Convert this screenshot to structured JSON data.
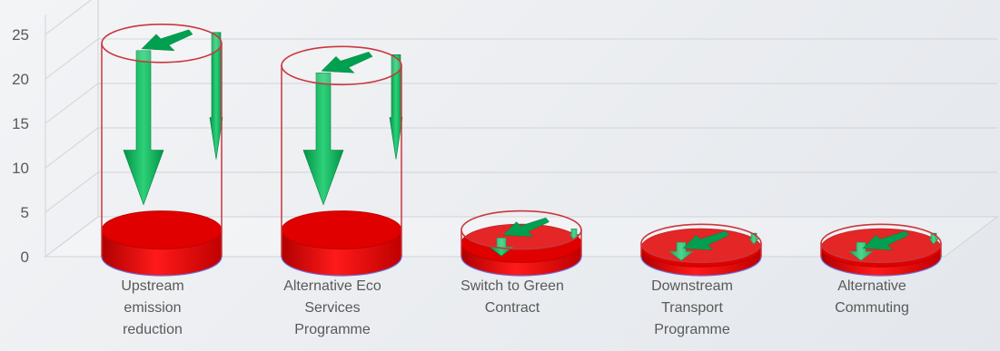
{
  "chart_data": {
    "type": "bar",
    "style": "3d-cylinder",
    "title": "",
    "xlabel": "",
    "ylabel": "",
    "ylim": [
      0,
      25
    ],
    "yticks": [
      0,
      5,
      10,
      15,
      20,
      25
    ],
    "grid": true,
    "legend": "none",
    "categories": [
      "Upstream emission reduction",
      "Alternative Eco Services Programme",
      "Switch to Green Contract",
      "Downstream Transport Programme",
      "Alternative Commuting"
    ],
    "category_lines": [
      [
        "Upstream",
        "emission",
        "reduction"
      ],
      [
        "Alternative Eco",
        "Services",
        "Programme"
      ],
      [
        "Switch to Green",
        "Contract"
      ],
      [
        "Downstream",
        "Transport",
        "Programme"
      ],
      [
        "Alternative",
        "Commuting"
      ]
    ],
    "series": [
      {
        "values": [
          24,
          21.5,
          3,
          1.5,
          1.5
        ]
      },
      {
        "values": [
          3,
          3,
          1.5,
          1,
          1
        ]
      }
    ],
    "colors": {
      "outline": "#c9373d",
      "fill": "#ff0000",
      "fill_dark": "#b00000",
      "arrow": "#00a050",
      "arrow_light": "#2ed07a",
      "grid": "#cfd3d8",
      "text": "#595959"
    }
  }
}
